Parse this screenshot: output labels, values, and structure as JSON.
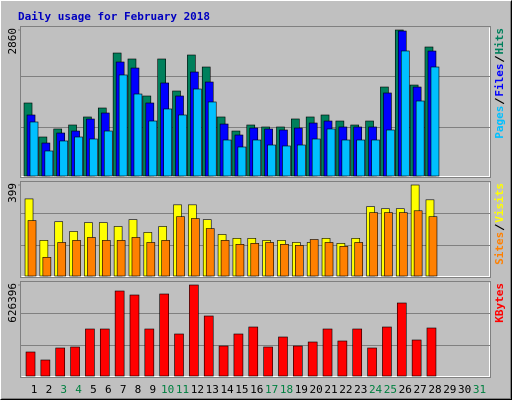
{
  "chart_data": [
    {
      "type": "bar",
      "title": "Daily usage for February 2018",
      "categories": [
        "1",
        "2",
        "3",
        "4",
        "5",
        "6",
        "7",
        "8",
        "9",
        "10",
        "11",
        "12",
        "13",
        "14",
        "15",
        "16",
        "17",
        "18",
        "19",
        "20",
        "21",
        "22",
        "23",
        "24",
        "25",
        "26",
        "27",
        "28",
        "29",
        "30",
        "31"
      ],
      "category_colors": [
        "#000000",
        "#000000",
        "#008040",
        "#008040",
        "#000000",
        "#000000",
        "#000000",
        "#000000",
        "#000000",
        "#008040",
        "#008040",
        "#000000",
        "#000000",
        "#000000",
        "#000000",
        "#000000",
        "#008040",
        "#008040",
        "#000000",
        "#000000",
        "#000000",
        "#000000",
        "#000000",
        "#008040",
        "#008040",
        "#000000",
        "#000000",
        "#000000",
        "#000000",
        "#000000",
        "#008040"
      ],
      "ylim": [
        0,
        2860
      ],
      "yticks": [
        2860
      ],
      "series": [
        {
          "name": "Hits",
          "color": "#00805c",
          "values": [
            1430,
            764,
            921,
            999,
            1156,
            1332,
            2409,
            2292,
            1567,
            2292,
            1665,
            2370,
            2135,
            1156,
            881,
            999,
            960,
            960,
            1117,
            1156,
            1195,
            1077,
            999,
            1077,
            1743,
            2860,
            1782,
            2527,
            null,
            null,
            null
          ]
        },
        {
          "name": "Files",
          "color": "#0000ff",
          "values": [
            1195,
            646,
            842,
            881,
            1116,
            1234,
            2233,
            2115,
            1430,
            1822,
            1567,
            2037,
            1841,
            1018,
            803,
            940,
            920,
            901,
            940,
            1038,
            1077,
            960,
            960,
            960,
            1626,
            2840,
            1743,
            2448,
            null,
            null,
            null
          ]
        },
        {
          "name": "Pages",
          "color": "#00c0ff",
          "values": [
            1058,
            490,
            686,
            764,
            725,
            881,
            1979,
            1606,
            1077,
            1313,
            1195,
            1704,
            1450,
            705,
            568,
            705,
            607,
            588,
            607,
            725,
            921,
            705,
            705,
            705,
            901,
            2449,
            1469,
            2135,
            null,
            null,
            null
          ]
        }
      ]
    },
    {
      "type": "bar",
      "ylim": [
        0,
        399
      ],
      "yticks": [
        399
      ],
      "series": [
        {
          "name": "Visits",
          "color": "#ffff00",
          "values": [
            338,
            156,
            238,
            195,
            234,
            234,
            217,
            247,
            191,
            217,
            312,
            312,
            247,
            182,
            165,
            165,
            156,
            156,
            147,
            147,
            165,
            143,
            165,
            304,
            295,
            295,
            399,
            334,
            null,
            null,
            null
          ]
        },
        {
          "name": "Sites",
          "color": "#ff8000",
          "values": [
            243,
            82,
            147,
            156,
            169,
            156,
            156,
            169,
            147,
            156,
            260,
            252,
            208,
            156,
            139,
            143,
            147,
            139,
            134,
            160,
            147,
            130,
            147,
            278,
            278,
            278,
            286,
            260,
            null,
            null,
            null
          ]
        }
      ]
    },
    {
      "type": "bar",
      "ylim": [
        0,
        626396
      ],
      "yticks": [
        626396
      ],
      "series": [
        {
          "name": "KBytes",
          "color": "#ff0000",
          "values": [
            165192,
            110128,
            192724,
            199607,
            323501,
            323501,
            585055,
            557523,
            323501,
            564406,
            289086,
            626396,
            412980,
            206490,
            289086,
            337267,
            199607,
            268437,
            206490,
            234022,
            323501,
            240905,
            323501,
            192724,
            337267,
            502459,
            247788,
            330384,
            null,
            null,
            null
          ]
        }
      ]
    }
  ]
}
